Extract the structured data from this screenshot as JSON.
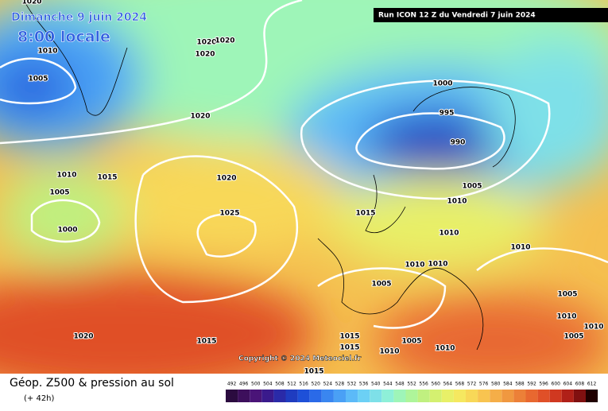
{
  "header": {
    "title": "Dimanche 9 juin 2024",
    "time": "8:00 locale",
    "run": "Run ICON 12 Z du Vendredi 7 juin 2024"
  },
  "copyright": "Copyright © 2024 Meteociel.fr",
  "footer": {
    "title": "Géop. Z500 & pression au sol",
    "lead": "(+ 42h)"
  },
  "colorbar": {
    "values": [
      492,
      496,
      500,
      504,
      508,
      512,
      516,
      520,
      524,
      528,
      532,
      536,
      540,
      544,
      548,
      552,
      556,
      560,
      564,
      568,
      572,
      576,
      580,
      584,
      588,
      592,
      596,
      600,
      604,
      608,
      612
    ],
    "colors": [
      "#2b0b3f",
      "#3d0f5c",
      "#4a1478",
      "#3a1a8c",
      "#2a2aa8",
      "#1f3cc0",
      "#1e50d8",
      "#2a6ae8",
      "#3a86f0",
      "#4aa0f5",
      "#5cbaf8",
      "#6cd0f5",
      "#7ee0e8",
      "#8ef0d8",
      "#9ef5b8",
      "#aef59a",
      "#c0f080",
      "#d4f070",
      "#e8f068",
      "#f5e860",
      "#f8d858",
      "#f8c450",
      "#f5ae48",
      "#f09840",
      "#ec8038",
      "#e86830",
      "#e05028",
      "#d03820",
      "#b02018",
      "#801010",
      "#200000"
    ]
  },
  "isobars": {
    "labels": [
      1020,
      1010,
      1005,
      1020,
      1020,
      1020,
      1020,
      1000,
      995,
      990,
      1005,
      1010,
      1015,
      1010,
      1010,
      1010,
      1010,
      1005,
      1010,
      1015,
      1020,
      1025,
      1005,
      1000,
      1020,
      1015,
      1015,
      1015,
      1005,
      1010,
      1010,
      1015,
      1010,
      1005,
      1005,
      1010
    ]
  }
}
